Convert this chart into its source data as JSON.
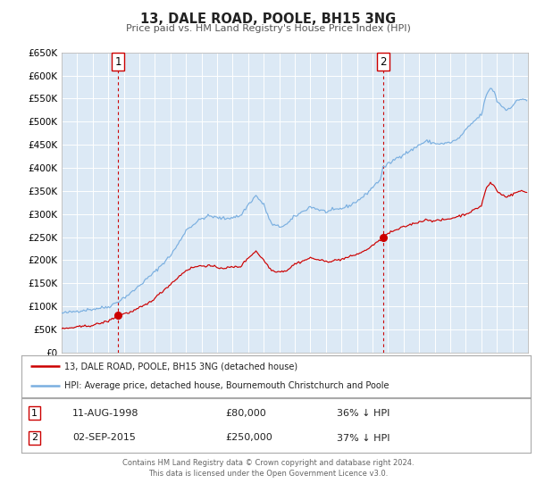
{
  "title": "13, DALE ROAD, POOLE, BH15 3NG",
  "subtitle": "Price paid vs. HM Land Registry's House Price Index (HPI)",
  "legend_line1": "13, DALE ROAD, POOLE, BH15 3NG (detached house)",
  "legend_line2": "HPI: Average price, detached house, Bournemouth Christchurch and Poole",
  "annotation1_date": "11-AUG-1998",
  "annotation1_price": "£80,000",
  "annotation1_hpi": "36% ↓ HPI",
  "annotation2_date": "02-SEP-2015",
  "annotation2_price": "£250,000",
  "annotation2_hpi": "37% ↓ HPI",
  "fig_bg_color": "#ffffff",
  "plot_bg_color": "#dce9f5",
  "red_line_color": "#cc0000",
  "blue_line_color": "#7aafe0",
  "vline_color": "#cc0000",
  "grid_color": "#c8d8e8",
  "title_color": "#222222",
  "subtitle_color": "#555555",
  "footer_text": "Contains HM Land Registry data © Crown copyright and database right 2024.\nThis data is licensed under the Open Government Licence v3.0.",
  "ylim": [
    0,
    650000
  ],
  "yticks": [
    0,
    50000,
    100000,
    150000,
    200000,
    250000,
    300000,
    350000,
    400000,
    450000,
    500000,
    550000,
    600000,
    650000
  ],
  "sale1_year": 1998.617,
  "sale1_value": 80000,
  "sale2_year": 2015.671,
  "sale2_value": 250000,
  "box1_label": "1",
  "box2_label": "2"
}
